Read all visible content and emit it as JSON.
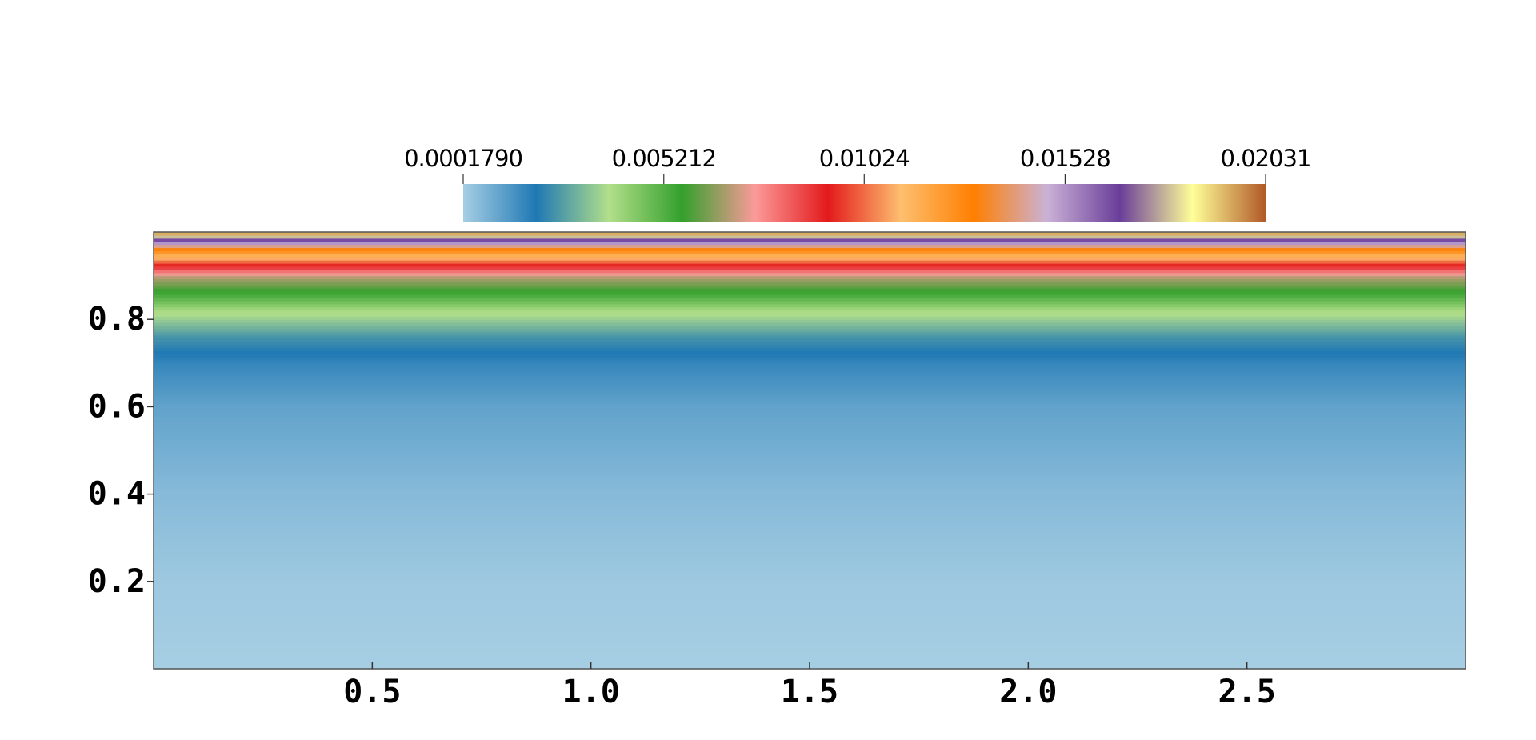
{
  "chart_data": {
    "type": "heatmap",
    "title": "",
    "xlabel": "",
    "ylabel": "",
    "xlim": [
      0,
      3.0
    ],
    "ylim": [
      0,
      1.0
    ],
    "x_ticks": [
      {
        "value": 0.5,
        "label": "0.5"
      },
      {
        "value": 1.0,
        "label": "1.0"
      },
      {
        "value": 1.5,
        "label": "1.5"
      },
      {
        "value": 2.0,
        "label": "2.0"
      },
      {
        "value": 2.5,
        "label": "2.5"
      }
    ],
    "y_ticks": [
      {
        "value": 0.2,
        "label": "0.2"
      },
      {
        "value": 0.4,
        "label": "0.4"
      },
      {
        "value": 0.6,
        "label": "0.6"
      },
      {
        "value": 0.8,
        "label": "0.8"
      }
    ],
    "colorbar": {
      "orientation": "horizontal",
      "placement": "top",
      "range": [
        0.000179,
        0.02031
      ],
      "tick_labels": [
        "0.0001790",
        "0.005212",
        "0.01024",
        "0.01528",
        "0.02031"
      ],
      "tick_values": [
        0.000179,
        0.005212,
        0.01024,
        0.01528,
        0.02031
      ],
      "colormap": [
        "#a6cee3",
        "#1f78b4",
        "#b2df8a",
        "#33a02c",
        "#fb9a99",
        "#e31a1c",
        "#fdbf6f",
        "#ff7f00",
        "#cab2d6",
        "#6a3d9a",
        "#ffff99",
        "#b15928"
      ]
    },
    "field": {
      "varies_along": "y",
      "profile": [
        {
          "y": 0.0,
          "value": 0.000179
        },
        {
          "y": 0.2,
          "value": 0.0003
        },
        {
          "y": 0.4,
          "value": 0.0006
        },
        {
          "y": 0.6,
          "value": 0.0011
        },
        {
          "y": 0.7,
          "value": 0.0017
        },
        {
          "y": 0.76,
          "value": 0.0025
        },
        {
          "y": 0.82,
          "value": 0.004
        },
        {
          "y": 0.86,
          "value": 0.0055
        },
        {
          "y": 0.9,
          "value": 0.007
        },
        {
          "y": 0.93,
          "value": 0.01
        },
        {
          "y": 0.96,
          "value": 0.013
        },
        {
          "y": 0.98,
          "value": 0.016
        },
        {
          "y": 0.995,
          "value": 0.019
        },
        {
          "y": 1.0,
          "value": 0.02031
        }
      ]
    }
  }
}
